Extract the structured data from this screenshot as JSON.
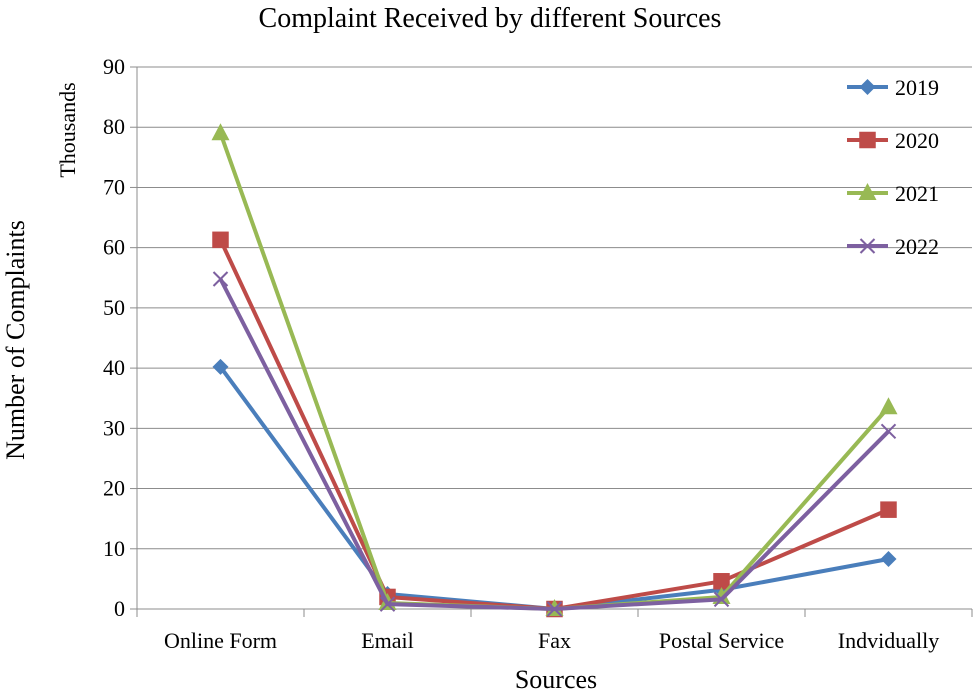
{
  "chart_data": {
    "type": "line",
    "title": "Complaint Received by different Sources",
    "xlabel": "Sources",
    "ylabel": "Number of Complaints",
    "yunits": "Thousands",
    "ylim": [
      0,
      90
    ],
    "yticks": [
      0,
      10,
      20,
      30,
      40,
      50,
      60,
      70,
      80,
      90
    ],
    "grid": true,
    "legend_position": "top-right",
    "categories": [
      "Online Form",
      "Email",
      "Fax",
      "Postal Service",
      "Indvidually"
    ],
    "series": [
      {
        "name": "2019",
        "values": [
          40.2,
          2.5,
          0,
          3.2,
          8.3
        ],
        "color": "#4a7ebb",
        "marker": "diamond"
      },
      {
        "name": "2020",
        "values": [
          61.3,
          2.0,
          0,
          4.6,
          16.5
        ],
        "color": "#be4b48",
        "marker": "square"
      },
      {
        "name": "2021",
        "values": [
          79.0,
          1.0,
          0,
          2.0,
          33.5
        ],
        "color": "#98b954",
        "marker": "triangle"
      },
      {
        "name": "2022",
        "values": [
          54.8,
          0.8,
          0,
          1.6,
          29.5
        ],
        "color": "#7d60a0",
        "marker": "x"
      }
    ]
  }
}
